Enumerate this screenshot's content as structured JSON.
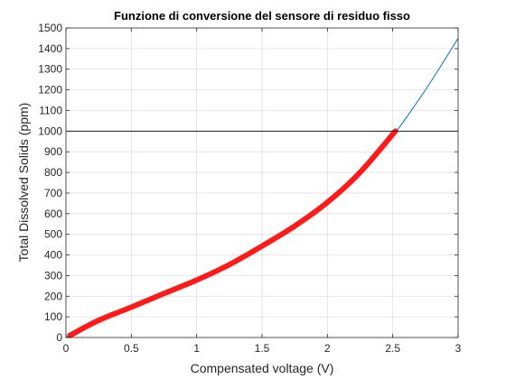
{
  "chart_data": {
    "type": "line",
    "title": "Funzione di conversione del sensore di residuo fisso",
    "xlabel": "Compensated voltage (V)",
    "ylabel": "Total Dissolved Solids (ppm)",
    "xlim": [
      0,
      3
    ],
    "ylim": [
      0,
      1500
    ],
    "xticks": [
      0,
      0.5,
      1,
      1.5,
      2,
      2.5,
      3
    ],
    "xtick_labels": [
      "0",
      "0.5",
      "1",
      "1.5",
      "2",
      "2.5",
      "3"
    ],
    "yticks": [
      0,
      100,
      200,
      300,
      400,
      500,
      600,
      700,
      800,
      900,
      1000,
      1100,
      1200,
      1300,
      1400,
      1500
    ],
    "ytick_labels": [
      "0",
      "100",
      "200",
      "300",
      "400",
      "500",
      "600",
      "700",
      "800",
      "900",
      "1000",
      "1100",
      "1200",
      "1300",
      "1400",
      "1500"
    ],
    "grid": true,
    "legend": "none",
    "series": [
      {
        "style": "thin-blue-line",
        "color": "#0072bd",
        "x": [
          0,
          0.25,
          0.5,
          0.75,
          1,
          1.25,
          1.5,
          1.75,
          2,
          2.25,
          2.5,
          2.75,
          3
        ],
        "y": [
          0,
          83,
          147,
          213,
          278,
          353,
          443,
          540,
          655,
          800,
          977,
          1200,
          1450
        ]
      },
      {
        "style": "thick-red-line",
        "color": "#ff1a1a",
        "x": [
          0.03,
          0.25,
          0.5,
          0.75,
          1,
          1.25,
          1.5,
          1.75,
          2,
          2.25,
          2.52
        ],
        "y": [
          10,
          83,
          147,
          213,
          278,
          353,
          443,
          540,
          655,
          800,
          1000
        ]
      },
      {
        "style": "black-horizontal-line",
        "color": "#000000",
        "x": [
          0,
          3
        ],
        "y": [
          1000,
          1000
        ]
      }
    ]
  }
}
